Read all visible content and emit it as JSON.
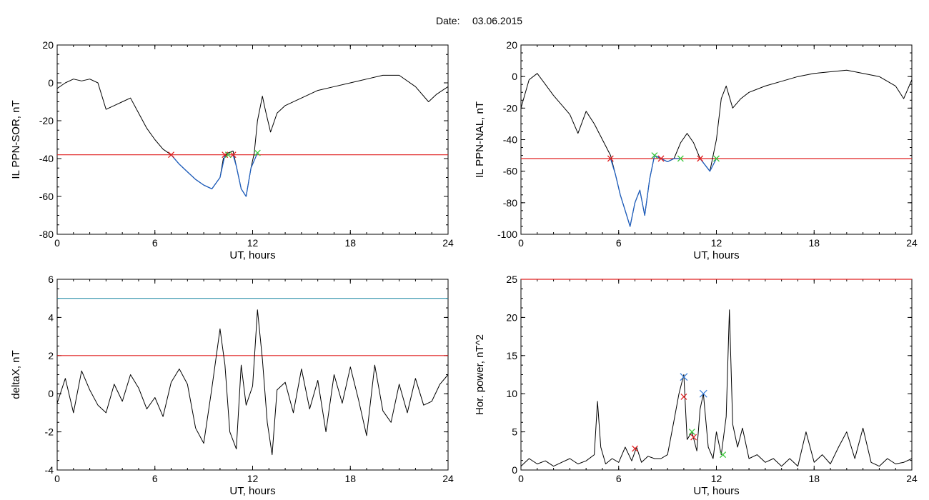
{
  "header": {
    "date_label": "Date:",
    "date_value": "03.06.2015"
  },
  "colors": {
    "curve": "#000000",
    "segment": "#1f5fbf",
    "threshold_red": "#e02020",
    "threshold_teal": "#2a8fa8",
    "marker_start": "#e02020",
    "marker_end": "#3cc83c",
    "marker_peak": "#3b7fd9"
  },
  "chart_data": [
    {
      "id": "ppn-sor",
      "type": "line",
      "ylabel": "IL PPN-SOR, nT",
      "xlabel": "UT, hours",
      "xlim": [
        0,
        24
      ],
      "ylim": [
        -80,
        20
      ],
      "xticks": [
        "0",
        "6",
        "12",
        "18",
        "24"
      ],
      "yticks": [
        "20",
        "0",
        "-20",
        "-40",
        "-60",
        "-80"
      ],
      "threshold": -38,
      "series": [
        {
          "x": [
            0,
            0.5,
            1,
            1.5,
            2,
            2.5,
            3,
            3.5,
            4,
            4.5,
            5,
            5.5,
            6,
            6.5,
            7,
            7.5,
            8,
            8.5,
            9,
            9.5,
            10,
            10.2,
            10.5,
            10.8,
            11,
            11.3,
            11.6,
            11.9,
            12.1,
            12.3,
            12.6,
            12.8,
            13.1,
            13.5,
            14,
            15,
            16,
            17,
            18,
            19,
            20,
            21,
            22,
            22.8,
            23.3,
            24
          ],
          "y": [
            -3,
            0,
            2,
            1,
            2,
            0,
            -14,
            -12,
            -10,
            -8,
            -16,
            -24,
            -30,
            -35,
            -38,
            -43,
            -47,
            -51,
            -54,
            -56,
            -50,
            -40,
            -37,
            -36,
            -44,
            -56,
            -60,
            -45,
            -37,
            -20,
            -7,
            -15,
            -26,
            -16,
            -12,
            -8,
            -4,
            -2,
            0,
            2,
            4,
            4,
            -2,
            -10,
            -6,
            -2
          ]
        }
      ],
      "segments": [
        {
          "x": [
            7,
            7.5,
            8,
            8.5,
            9,
            9.5,
            10,
            10.3
          ],
          "y": [
            -38,
            -43,
            -47,
            -51,
            -54,
            -56,
            -50,
            -38
          ]
        },
        {
          "x": [
            10.8,
            11,
            11.3,
            11.6,
            11.9,
            12.3
          ],
          "y": [
            -38,
            -44,
            -56,
            -60,
            -45,
            -37
          ]
        }
      ],
      "markers_start": [
        [
          7,
          -38
        ],
        [
          10.3,
          -38
        ],
        [
          10.8,
          -38
        ]
      ],
      "markers_end": [
        [
          10.5,
          -38
        ],
        [
          12.3,
          -37
        ]
      ]
    },
    {
      "id": "ppn-nal",
      "type": "line",
      "ylabel": "IL PPN-NAL, nT",
      "xlabel": "UT, hours",
      "xlim": [
        0,
        24
      ],
      "ylim": [
        -100,
        20
      ],
      "xticks": [
        "0",
        "6",
        "12",
        "18",
        "24"
      ],
      "yticks": [
        "20",
        "0",
        "-20",
        "-40",
        "-60",
        "-80",
        "-100"
      ],
      "threshold": -52,
      "series": [
        {
          "x": [
            0,
            0.5,
            1,
            1.5,
            2,
            2.5,
            3,
            3.5,
            4,
            4.5,
            5,
            5.5,
            5.8,
            6.1,
            6.4,
            6.7,
            7,
            7.3,
            7.6,
            7.9,
            8.2,
            8.6,
            9,
            9.4,
            9.8,
            10.2,
            10.6,
            11,
            11.3,
            11.6,
            12,
            12.3,
            12.6,
            13,
            13.5,
            14,
            15,
            16,
            17,
            18,
            19,
            20,
            21,
            22,
            23,
            23.5,
            24
          ],
          "y": [
            -20,
            -2,
            2,
            -5,
            -12,
            -18,
            -24,
            -36,
            -22,
            -30,
            -40,
            -50,
            -62,
            -75,
            -85,
            -95,
            -80,
            -72,
            -88,
            -65,
            -50,
            -52,
            -54,
            -52,
            -42,
            -36,
            -42,
            -52,
            -56,
            -60,
            -40,
            -14,
            -6,
            -20,
            -14,
            -10,
            -6,
            -3,
            0,
            2,
            3,
            4,
            2,
            0,
            -6,
            -14,
            -2
          ]
        }
      ],
      "segments": [
        {
          "x": [
            5.5,
            5.8,
            6.1,
            6.4,
            6.7,
            7,
            7.3,
            7.6,
            7.9,
            8.2,
            8.6
          ],
          "y": [
            -52,
            -62,
            -75,
            -85,
            -95,
            -80,
            -72,
            -88,
            -65,
            -50,
            -52
          ]
        },
        {
          "x": [
            8.6,
            9,
            9.4,
            9.8
          ],
          "y": [
            -52,
            -54,
            -52,
            -52
          ]
        },
        {
          "x": [
            11,
            11.3,
            11.6,
            12
          ],
          "y": [
            -52,
            -56,
            -60,
            -52
          ]
        }
      ],
      "markers_start": [
        [
          5.5,
          -52
        ],
        [
          8.6,
          -52
        ],
        [
          11,
          -52
        ]
      ],
      "markers_end": [
        [
          8.2,
          -50
        ],
        [
          9.8,
          -52
        ],
        [
          12,
          -52
        ]
      ]
    },
    {
      "id": "deltax",
      "type": "line",
      "ylabel": "deltaX, nT",
      "xlabel": "UT, hours",
      "xlim": [
        0,
        24
      ],
      "ylim": [
        -4,
        6
      ],
      "xticks": [
        "0",
        "6",
        "12",
        "18",
        "24"
      ],
      "yticks": [
        "6",
        "4",
        "2",
        "0",
        "-2",
        "-4"
      ],
      "threshold": 2,
      "threshold2": 5,
      "series": [
        {
          "x": [
            0,
            0.5,
            1,
            1.5,
            2,
            2.5,
            3,
            3.5,
            4,
            4.5,
            5,
            5.5,
            6,
            6.5,
            7,
            7.5,
            8,
            8.5,
            9,
            9.5,
            10,
            10.3,
            10.6,
            11,
            11.3,
            11.6,
            12,
            12.3,
            12.6,
            12.9,
            13.2,
            13.5,
            14,
            14.5,
            15,
            15.5,
            16,
            16.5,
            17,
            17.5,
            18,
            18.5,
            19,
            19.5,
            20,
            20.5,
            21,
            21.5,
            22,
            22.5,
            23,
            23.5,
            24
          ],
          "y": [
            -0.5,
            0.8,
            -1.0,
            1.2,
            0.2,
            -0.6,
            -1.0,
            0.5,
            -0.4,
            1.0,
            0.3,
            -0.8,
            -0.2,
            -1.2,
            0.6,
            1.3,
            0.5,
            -1.8,
            -2.6,
            0.3,
            3.4,
            1.5,
            -2.0,
            -2.9,
            1.5,
            -0.6,
            0.4,
            4.4,
            1.8,
            -1.5,
            -3.2,
            0.2,
            0.6,
            -1.0,
            1.3,
            -0.8,
            0.7,
            -2.0,
            1.0,
            -0.5,
            1.4,
            -0.3,
            -2.2,
            1.5,
            -0.9,
            -1.5,
            0.5,
            -1.0,
            0.8,
            -0.6,
            -0.4,
            0.5,
            1.0
          ]
        }
      ]
    },
    {
      "id": "hor-power",
      "type": "line",
      "ylabel": "Hor. power, nT^2",
      "xlabel": "UT, hours",
      "xlim": [
        0,
        24
      ],
      "ylim": [
        0,
        25
      ],
      "xticks": [
        "0",
        "6",
        "12",
        "18",
        "24"
      ],
      "yticks": [
        "25",
        "20",
        "15",
        "10",
        "5",
        "0"
      ],
      "threshold": 25,
      "series": [
        {
          "x": [
            0,
            0.5,
            1,
            1.5,
            2,
            2.5,
            3,
            3.5,
            4,
            4.5,
            4.7,
            4.9,
            5.2,
            5.6,
            6,
            6.4,
            6.8,
            7.1,
            7.4,
            7.8,
            8.2,
            8.6,
            9,
            9.4,
            9.7,
            10,
            10.2,
            10.5,
            10.8,
            11,
            11.2,
            11.5,
            11.8,
            12,
            12.3,
            12.6,
            12.8,
            13,
            13.3,
            13.6,
            14,
            14.5,
            15,
            15.5,
            16,
            16.5,
            17,
            17.5,
            18,
            18.5,
            19,
            19.5,
            20,
            20.5,
            21,
            21.5,
            22,
            22.5,
            23,
            23.5,
            24
          ],
          "y": [
            0.5,
            1.5,
            0.8,
            1.2,
            0.5,
            1.0,
            1.5,
            0.8,
            1.2,
            2.0,
            9.0,
            3.0,
            0.8,
            1.5,
            1.0,
            3.0,
            1.2,
            3.0,
            1.0,
            1.8,
            1.5,
            1.5,
            2.0,
            6.5,
            10.0,
            12.5,
            4.0,
            5.0,
            2.5,
            8.0,
            10.0,
            3.0,
            1.5,
            5.0,
            2.0,
            7.0,
            21.0,
            6.0,
            3.0,
            5.5,
            1.5,
            2.0,
            1.0,
            1.5,
            0.5,
            1.5,
            0.5,
            5.0,
            1.0,
            2.0,
            0.8,
            3.0,
            5.0,
            1.5,
            5.5,
            1.0,
            0.5,
            1.5,
            0.8,
            1.0,
            1.5
          ]
        }
      ],
      "markers_start": [
        [
          7.0,
          2.8
        ],
        [
          10.0,
          9.6
        ],
        [
          10.6,
          4.3
        ]
      ],
      "markers_end": [
        [
          10.5,
          5.0
        ],
        [
          12.4,
          2.0
        ]
      ],
      "markers_peak": [
        [
          10.0,
          12.2
        ],
        [
          11.2,
          10.0
        ]
      ]
    }
  ]
}
